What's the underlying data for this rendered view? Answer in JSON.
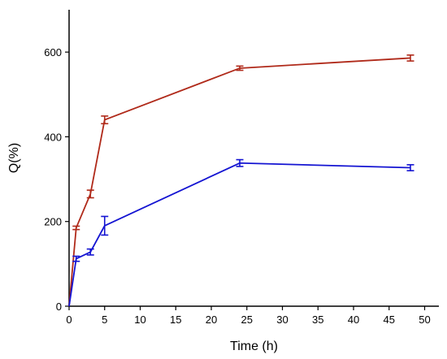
{
  "chart_data": {
    "type": "line",
    "title": "",
    "xlabel": "Time (h)",
    "ylabel": "Q(%)",
    "xlim": [
      0,
      52
    ],
    "ylim": [
      0,
      700
    ],
    "x_ticks": [
      0,
      5,
      10,
      15,
      20,
      25,
      30,
      35,
      40,
      45,
      50
    ],
    "y_ticks": [
      0,
      200,
      400,
      600
    ],
    "grid": false,
    "series": [
      {
        "color": "#b02a1a",
        "points": [
          {
            "x": 0,
            "y": 0,
            "err": 0
          },
          {
            "x": 1,
            "y": 185,
            "err": 4
          },
          {
            "x": 3,
            "y": 265,
            "err": 9
          },
          {
            "x": 5,
            "y": 440,
            "err": 9
          },
          {
            "x": 24,
            "y": 562,
            "err": 5
          },
          {
            "x": 48,
            "y": 586,
            "err": 7
          }
        ]
      },
      {
        "color": "#1414d2",
        "points": [
          {
            "x": 0,
            "y": 0,
            "err": 0
          },
          {
            "x": 1,
            "y": 112,
            "err": 6
          },
          {
            "x": 3,
            "y": 128,
            "err": 7
          },
          {
            "x": 5,
            "y": 190,
            "err": 22
          },
          {
            "x": 24,
            "y": 338,
            "err": 8
          },
          {
            "x": 48,
            "y": 327,
            "err": 7
          }
        ]
      }
    ]
  }
}
